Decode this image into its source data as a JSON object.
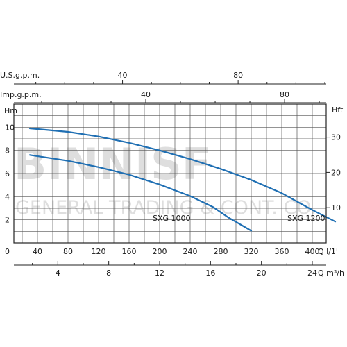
{
  "watermark": {
    "line1": "BINNISF",
    "line2": "GENERAL TRADING & CONT. CO."
  },
  "chart_data": {
    "type": "line",
    "x_axis": {
      "label": "Q l/1'",
      "ticks": [
        0,
        40,
        80,
        120,
        160,
        200,
        240,
        280,
        320,
        360,
        400
      ],
      "range": [
        0,
        440
      ]
    },
    "secondary_x_axes": [
      {
        "label": "Q m³/h",
        "ticks": [
          4,
          8,
          12,
          16,
          20,
          24
        ],
        "factor": 0.06
      },
      {
        "label": "U.S.g.p.m.",
        "ticks": [
          40,
          80
        ],
        "factor": 0.26417
      },
      {
        "label": "Imp.g.p.m.",
        "ticks": [
          40,
          80
        ],
        "factor": 0.21997
      }
    ],
    "y_axis": {
      "label": "Hm",
      "ticks": [
        2,
        4,
        6,
        8,
        10
      ],
      "range": [
        0,
        12
      ]
    },
    "secondary_y_axis": {
      "label": "Hft",
      "ticks": [
        10,
        20,
        30
      ],
      "factor": 3.2808
    },
    "grid": true,
    "series": [
      {
        "name": "SXG 1000",
        "color": "#1f6fb3",
        "points": [
          [
            30,
            7.6
          ],
          [
            80,
            7.1
          ],
          [
            120,
            6.55
          ],
          [
            160,
            5.9
          ],
          [
            200,
            5.05
          ],
          [
            240,
            4.05
          ],
          [
            270,
            3.1
          ],
          [
            290,
            2.2
          ],
          [
            320,
            1.05
          ]
        ]
      },
      {
        "name": "SXG 1200",
        "color": "#1f6fb3",
        "points": [
          [
            30,
            9.9
          ],
          [
            80,
            9.6
          ],
          [
            120,
            9.2
          ],
          [
            160,
            8.65
          ],
          [
            200,
            8.0
          ],
          [
            240,
            7.25
          ],
          [
            280,
            6.4
          ],
          [
            320,
            5.45
          ],
          [
            360,
            4.3
          ],
          [
            400,
            2.85
          ],
          [
            430,
            1.85
          ]
        ]
      }
    ]
  }
}
